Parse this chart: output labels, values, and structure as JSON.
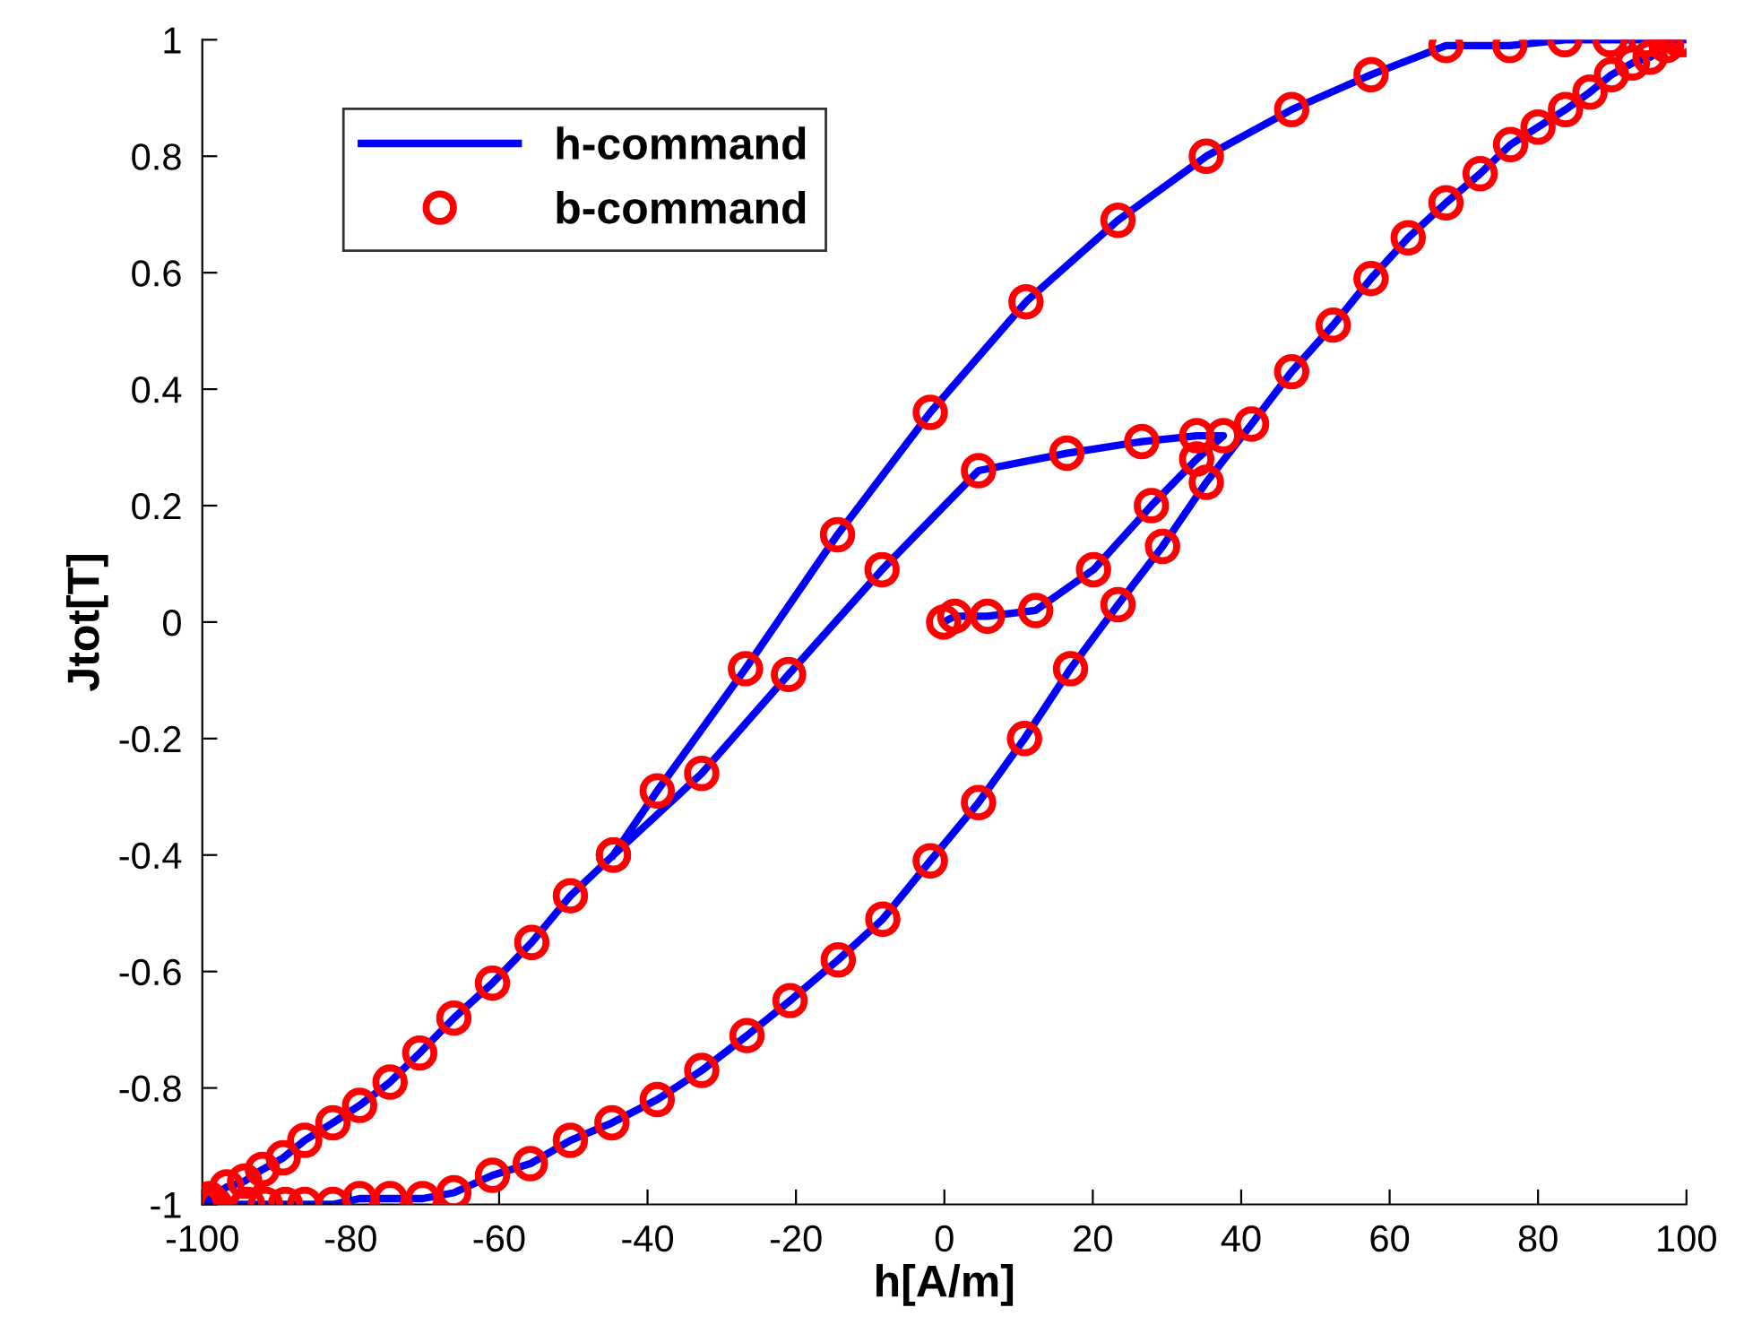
{
  "chart_data": {
    "type": "line",
    "xlabel": "h[A/m]",
    "ylabel": "Jtot[T]",
    "xlim": [
      -100,
      100
    ],
    "ylim": [
      -1,
      1
    ],
    "xticks": [
      -100,
      -80,
      -60,
      -40,
      -20,
      0,
      20,
      40,
      60,
      80,
      100
    ],
    "yticks": [
      -1,
      -0.8,
      -0.6,
      -0.4,
      -0.2,
      0,
      0.2,
      0.4,
      0.6,
      0.8,
      1
    ],
    "grid": false,
    "legend": "top left",
    "series": [
      {
        "name": "h-command",
        "marker": "none",
        "line_style": "solid",
        "color": "#0000ff",
        "x": [
          -0.1,
          1.4,
          5.8,
          12.3,
          20.1,
          27.9,
          34.0,
          37.6,
          34.0,
          26.6,
          16.5,
          4.6,
          -8.4,
          -21.0,
          -32.7,
          -44.6,
          -50.4,
          -55.6,
          -60.9,
          -66.1,
          -70.7,
          -74.7,
          -78.8,
          -82.4,
          -86.2,
          -89.1,
          -91.9,
          -94.3,
          -96.7,
          -99.1,
          -100,
          -98.3,
          -93.9,
          -91.5,
          -88.8,
          -86.2,
          -82.4,
          -78.8,
          -74.7,
          -70.3,
          -66.1,
          -60.9,
          -55.8,
          -50.4,
          -44.8,
          -38.7,
          -32.7,
          -26.6,
          -20.8,
          -14.3,
          -8.3,
          -1.9,
          4.6,
          10.8,
          17.0,
          23.4,
          29.4,
          35.3,
          41.4,
          46.8,
          52.4,
          57.5,
          62.5,
          67.6,
          72.2,
          76.3,
          80.0,
          83.7,
          87.0,
          89.9,
          92.7,
          95.1,
          97.3,
          99.0,
          100,
          94.5,
          89.7,
          83.6,
          76.2,
          67.6,
          57.5,
          46.8,
          35.3,
          23.4,
          11.0,
          -1.9,
          -14.4,
          -26.8,
          -38.7,
          -44.6
        ],
        "values": [
          0.0,
          0.01,
          0.01,
          0.02,
          0.09,
          0.2,
          0.28,
          0.32,
          0.32,
          0.31,
          0.29,
          0.26,
          0.09,
          -0.09,
          -0.26,
          -0.4,
          -0.47,
          -0.55,
          -0.62,
          -0.68,
          -0.74,
          -0.79,
          -0.83,
          -0.86,
          -0.89,
          -0.92,
          -0.94,
          -0.96,
          -0.97,
          -0.99,
          -1.0,
          -1.0,
          -1.0,
          -1.0,
          -1.0,
          -1.0,
          -1.0,
          -0.99,
          -0.99,
          -0.99,
          -0.98,
          -0.95,
          -0.93,
          -0.89,
          -0.86,
          -0.82,
          -0.77,
          -0.71,
          -0.65,
          -0.58,
          -0.51,
          -0.41,
          -0.31,
          -0.2,
          -0.08,
          0.03,
          0.13,
          0.24,
          0.34,
          0.43,
          0.51,
          0.59,
          0.66,
          0.72,
          0.77,
          0.82,
          0.85,
          0.88,
          0.91,
          0.94,
          0.96,
          0.97,
          0.99,
          1.0,
          1.0,
          1.0,
          1.0,
          1.0,
          0.99,
          0.99,
          0.94,
          0.88,
          0.8,
          0.69,
          0.55,
          0.36,
          0.15,
          -0.08,
          -0.29,
          -0.4
        ]
      },
      {
        "name": "b-command",
        "type": "scatter",
        "marker": "circle",
        "color": "#ff0000",
        "x": [
          -0.1,
          1.4,
          5.8,
          12.3,
          20.1,
          27.9,
          34.0,
          37.6,
          34.0,
          26.6,
          16.5,
          4.6,
          -8.4,
          -21.0,
          -32.7,
          -44.6,
          -50.4,
          -55.6,
          -60.9,
          -66.1,
          -70.7,
          -74.7,
          -78.8,
          -82.4,
          -86.2,
          -89.1,
          -91.9,
          -94.3,
          -96.7,
          -99.1,
          -100,
          -98.3,
          -93.9,
          -91.5,
          -88.8,
          -86.2,
          -82.4,
          -78.8,
          -74.7,
          -70.3,
          -66.1,
          -60.9,
          -55.8,
          -50.4,
          -44.8,
          -38.7,
          -32.7,
          -26.6,
          -20.8,
          -14.3,
          -8.3,
          -1.9,
          4.6,
          10.8,
          17.0,
          23.4,
          29.4,
          35.3,
          41.4,
          46.8,
          52.4,
          57.5,
          62.5,
          67.6,
          72.2,
          76.3,
          80.0,
          83.7,
          87.0,
          89.9,
          92.7,
          95.1,
          97.3,
          99.0,
          100,
          94.5,
          89.7,
          83.6,
          76.2,
          67.6,
          57.5,
          46.8,
          35.3,
          23.4,
          11.0,
          -1.9,
          -14.4,
          -26.8,
          -38.7,
          -44.6
        ],
        "values": [
          0.0,
          0.01,
          0.01,
          0.02,
          0.09,
          0.2,
          0.28,
          0.32,
          0.32,
          0.31,
          0.29,
          0.26,
          0.09,
          -0.09,
          -0.26,
          -0.4,
          -0.47,
          -0.55,
          -0.62,
          -0.68,
          -0.74,
          -0.79,
          -0.83,
          -0.86,
          -0.89,
          -0.92,
          -0.94,
          -0.96,
          -0.97,
          -0.99,
          -1.0,
          -1.0,
          -1.0,
          -1.0,
          -1.0,
          -1.0,
          -1.0,
          -0.99,
          -0.99,
          -0.99,
          -0.98,
          -0.95,
          -0.93,
          -0.89,
          -0.86,
          -0.82,
          -0.77,
          -0.71,
          -0.65,
          -0.58,
          -0.51,
          -0.41,
          -0.31,
          -0.2,
          -0.08,
          0.03,
          0.13,
          0.24,
          0.34,
          0.43,
          0.51,
          0.59,
          0.66,
          0.72,
          0.77,
          0.82,
          0.85,
          0.88,
          0.91,
          0.94,
          0.96,
          0.97,
          0.99,
          1.0,
          1.0,
          1.0,
          1.0,
          1.0,
          0.99,
          0.99,
          0.94,
          0.88,
          0.8,
          0.69,
          0.55,
          0.36,
          0.15,
          -0.08,
          -0.29,
          -0.4
        ]
      }
    ]
  }
}
